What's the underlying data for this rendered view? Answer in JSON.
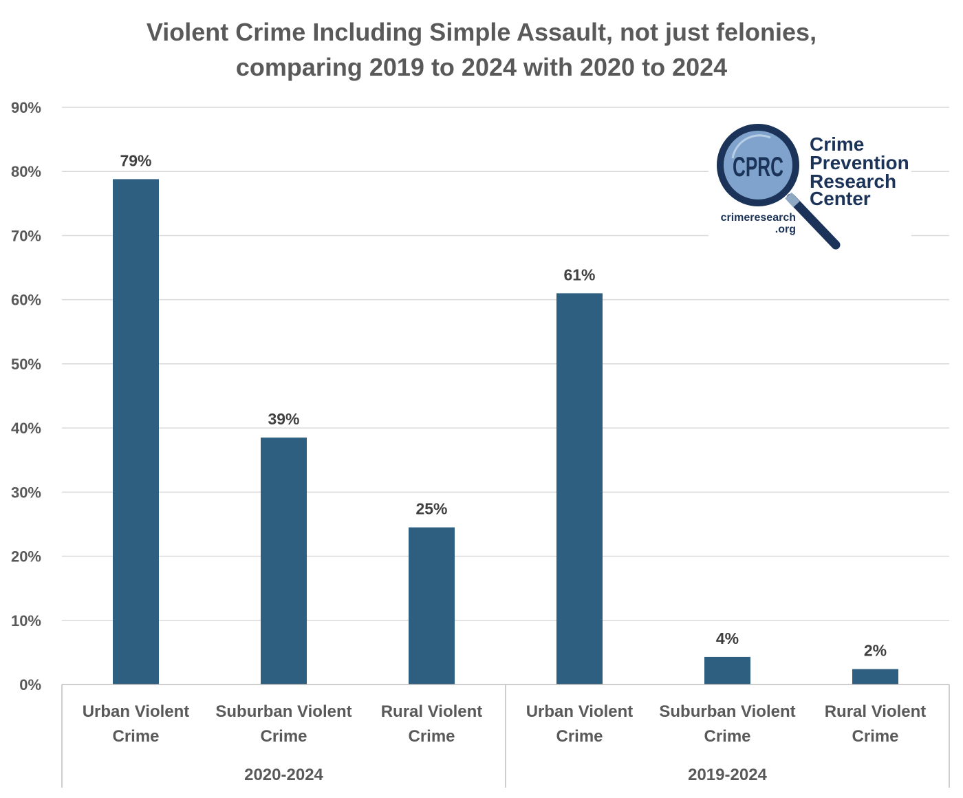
{
  "chart_data": {
    "type": "bar",
    "title": [
      "Violent Crime Including Simple Assault, not just felonies,",
      "comparing 2019 to 2024 with 2020 to 2024"
    ],
    "xlabel": "",
    "ylabel": "",
    "ylim": [
      0,
      90
    ],
    "yticks": [
      "0%",
      "10%",
      "20%",
      "30%",
      "40%",
      "50%",
      "60%",
      "70%",
      "80%",
      "90%"
    ],
    "grid": true,
    "groups": [
      {
        "label": "2020-2024",
        "categories": [
          [
            "Urban Violent",
            "Crime"
          ],
          [
            "Suburban Violent",
            "Crime"
          ],
          [
            "Rural Violent",
            "Crime"
          ]
        ]
      },
      {
        "label": "2019-2024",
        "categories": [
          [
            "Urban Violent",
            "Crime"
          ],
          [
            "Suburban Violent",
            "Crime"
          ],
          [
            "Rural Violent",
            "Crime"
          ]
        ]
      }
    ],
    "values": [
      78.8,
      38.5,
      24.5,
      61.0,
      4.3,
      2.4
    ],
    "data_labels": [
      "79%",
      "39%",
      "25%",
      "61%",
      "4%",
      "2%"
    ],
    "bar_color": "#2E5F80"
  },
  "logo": {
    "initials": "CPRC",
    "name_lines": [
      "Crime",
      "Prevention",
      "Research",
      "Center"
    ],
    "url_lines": [
      "crimeresearch",
      ".org"
    ],
    "colors": {
      "dark": "#1B3358",
      "lens": "#7FA3CC"
    }
  }
}
